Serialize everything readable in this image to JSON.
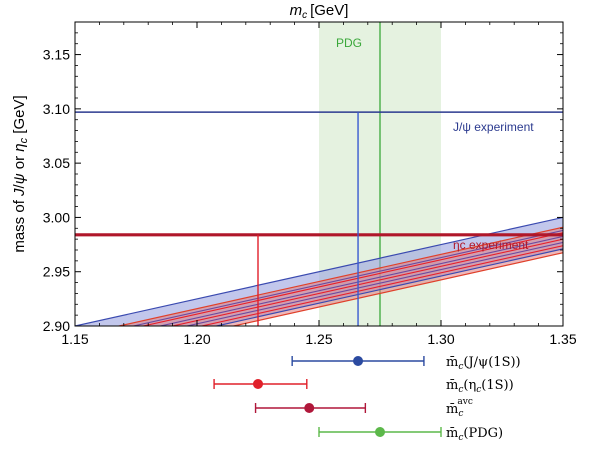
{
  "chart_data": {
    "type": "line",
    "title": "m_c [GeV]",
    "title_parts": {
      "m": "m",
      "sub": "c",
      "rest": "[GeV]"
    },
    "ylabel": "mass of J/ψ or ηc [GeV]",
    "ylabel_parts": {
      "a": "mass of ",
      "b": "J",
      "c": "/",
      "d": "ψ",
      "e": " or ",
      "f": "η",
      "g": "c",
      "h": " [GeV]"
    },
    "xlim": [
      1.15,
      1.35
    ],
    "ylim": [
      2.9,
      3.18
    ],
    "x_ticks": [
      "1.15",
      "1.20",
      "1.25",
      "1.30",
      "1.35"
    ],
    "y_ticks": [
      "2.90",
      "2.95",
      "3.00",
      "3.05",
      "3.10",
      "3.15"
    ],
    "pdg_band": {
      "label": "PDG",
      "xmin": 1.25,
      "xmax": 1.3,
      "center": 1.275,
      "color": "#3aa83a"
    },
    "jpsi": {
      "label": "J/ψ experiment",
      "color": "#2b3a8f",
      "experiment_mass": 3.097,
      "mc_at_experiment": 1.266,
      "band": {
        "mc_lower_at_ymin": 1.15,
        "mc_upper_at_ymin": 1.208,
        "slope_gev_per_gev": 2.0
      },
      "inner_lines_mc_at_ymin": [
        1.174,
        1.185,
        1.196
      ]
    },
    "etac": {
      "label": "ηc experiment",
      "color": "#b0172a",
      "experiment_mass": 2.984,
      "mc_at_experiment": 1.225,
      "band": {
        "mc_lower_at_ymin": 1.168,
        "mc_upper_at_ymin": 1.215,
        "slope_gev_per_gev": 2.0
      },
      "inner_lines_mc_at_ymin": [
        1.178,
        1.19,
        1.202
      ]
    },
    "estimates": [
      {
        "label_main": "m̄",
        "label_sub": "c",
        "label_arg": "(J/ψ(1S))",
        "center": 1.266,
        "lo": 1.239,
        "hi": 1.293,
        "color": "#2b4aa0"
      },
      {
        "label_main": "m̄",
        "label_sub": "c",
        "label_arg": "(η",
        "label_arg_sub": "c",
        "label_arg_end": "(1S))",
        "center": 1.225,
        "lo": 1.207,
        "hi": 1.245,
        "color": "#e0202a"
      },
      {
        "label_main": "m̄",
        "label_sub": "c",
        "label_sup": "avc",
        "label_arg": "",
        "center": 1.246,
        "lo": 1.224,
        "hi": 1.269,
        "color": "#b0173a"
      },
      {
        "label_main": "m̄",
        "label_sub": "c",
        "label_arg": "(PDG)",
        "center": 1.275,
        "lo": 1.25,
        "hi": 1.3,
        "color": "#5cb84a"
      }
    ]
  }
}
